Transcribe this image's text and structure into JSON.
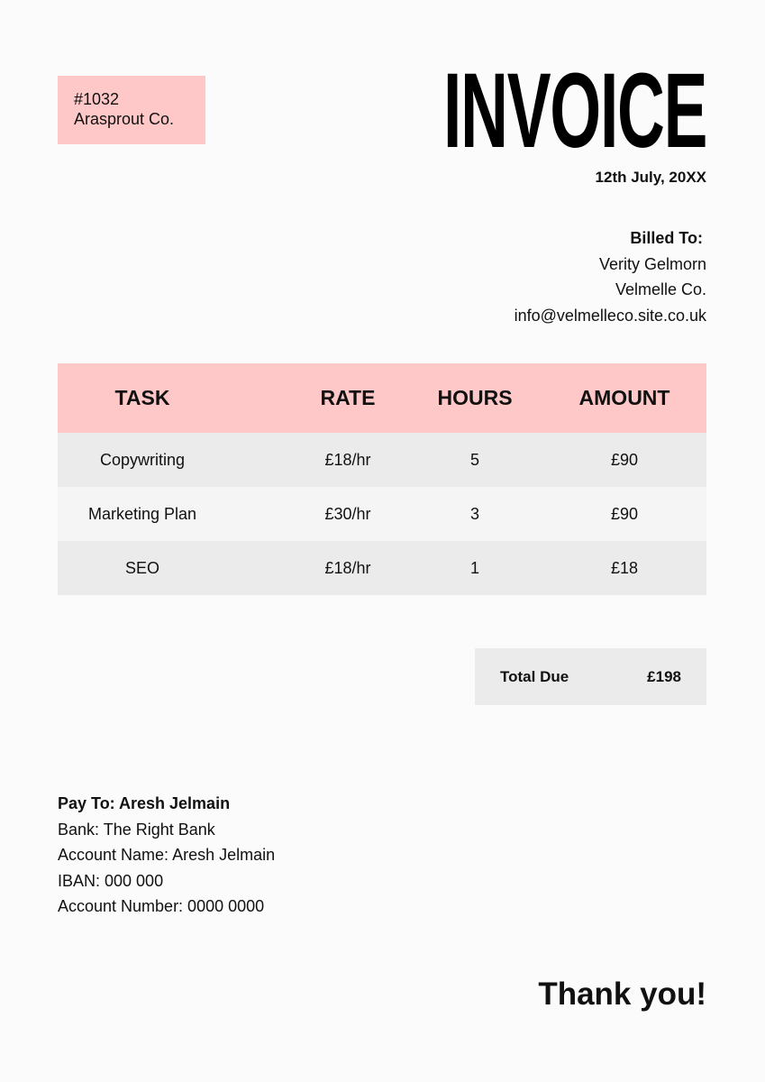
{
  "sender": {
    "invoice_number": "#1032",
    "company": "Arasprout Co."
  },
  "title": "INVOICE",
  "date": "12th July, 20XX",
  "billed_to": {
    "heading": "Billed To:",
    "name": "Verity Gelmorn",
    "company": "Velmelle Co.",
    "email": "info@velmelleco.site.co.uk"
  },
  "table": {
    "headers": [
      "TASK",
      "RATE",
      "HOURS",
      "AMOUNT"
    ],
    "rows": [
      [
        "Copywriting",
        "£18/hr",
        "5",
        "£90"
      ],
      [
        "Marketing Plan",
        "£30/hr",
        "3",
        "£90"
      ],
      [
        "SEO",
        "£18/hr",
        "1",
        "£18"
      ]
    ]
  },
  "total": {
    "label": "Total Due",
    "value": "£198"
  },
  "payment": {
    "heading": "Pay To: Aresh Jelmain",
    "lines": [
      "Bank: The Right Bank",
      "Account Name: Aresh Jelmain",
      "IBAN: 000 000",
      "Account Number: 0000 0000"
    ]
  },
  "closing": "Thank you!",
  "colors": {
    "accent": "#ffc8c8",
    "row_dark": "#ebebeb",
    "row_light": "#f5f5f5"
  }
}
